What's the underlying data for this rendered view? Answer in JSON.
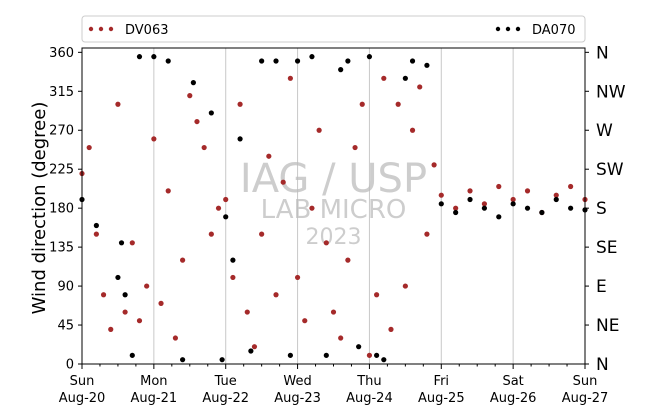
{
  "chart_data": {
    "type": "scatter",
    "ylabel": "Wind direction (degree)",
    "ylim": [
      0,
      365
    ],
    "xlim": [
      "Aug-20 00:00",
      "Aug-27 00:00"
    ],
    "yticks": [
      "0",
      "45",
      "90",
      "135",
      "180",
      "225",
      "270",
      "315",
      "360"
    ],
    "compass_ticks": [
      "N",
      "NE",
      "E",
      "SE",
      "S",
      "SW",
      "W",
      "NW",
      "N"
    ],
    "x_ticks": [
      {
        "day": "Sun",
        "date": "Aug-20"
      },
      {
        "day": "Mon",
        "date": "Aug-21"
      },
      {
        "day": "Tue",
        "date": "Aug-22"
      },
      {
        "day": "Wed",
        "date": "Aug-23"
      },
      {
        "day": "Thu",
        "date": "Aug-24"
      },
      {
        "day": "Fri",
        "date": "Aug-25"
      },
      {
        "day": "Sat",
        "date": "Aug-26"
      },
      {
        "day": "Sun",
        "date": "Aug-27"
      }
    ],
    "grid": "vertical lines at day boundaries",
    "legend_placement": "top, above plot",
    "watermark": [
      "IAG / USP",
      "LAB MICRO",
      "2023"
    ],
    "series": [
      {
        "name": "DV063",
        "color": "#a52a2a",
        "description": "widely scattered 0–360° Aug-20 to Aug-25; concentrated ~160–235° Aug-25 to Aug-27",
        "x_day": [
          0.0,
          0.1,
          0.2,
          0.3,
          0.4,
          0.5,
          0.6,
          0.7,
          0.8,
          0.9,
          1.0,
          1.1,
          1.2,
          1.3,
          1.4,
          1.5,
          1.6,
          1.7,
          1.8,
          1.9,
          2.0,
          2.1,
          2.2,
          2.3,
          2.4,
          2.5,
          2.6,
          2.7,
          2.8,
          2.9,
          3.0,
          3.1,
          3.2,
          3.3,
          3.4,
          3.5,
          3.6,
          3.7,
          3.8,
          3.9,
          4.0,
          4.1,
          4.2,
          4.3,
          4.4,
          4.5,
          4.6,
          4.7,
          4.8,
          4.9,
          5.0,
          5.2,
          5.4,
          5.6,
          5.8,
          6.0,
          6.2,
          6.4,
          6.6,
          6.8,
          7.0
        ],
        "y_deg": [
          220,
          250,
          150,
          80,
          40,
          300,
          60,
          140,
          50,
          90,
          260,
          70,
          200,
          30,
          120,
          310,
          280,
          250,
          150,
          180,
          190,
          100,
          300,
          60,
          20,
          150,
          240,
          80,
          210,
          330,
          100,
          50,
          180,
          270,
          140,
          60,
          30,
          120,
          250,
          300,
          10,
          80,
          330,
          40,
          300,
          90,
          270,
          320,
          150,
          230,
          195,
          180,
          200,
          185,
          205,
          190,
          200,
          175,
          195,
          205,
          190
        ]
      },
      {
        "name": "DA070",
        "color": "#000000",
        "description": "clusters near 320–360° on Aug-21 to Aug-24 afternoons; near 0–20° at night; ~170–200° from Aug-25",
        "x_day": [
          0.0,
          0.2,
          0.5,
          0.55,
          0.6,
          0.7,
          0.8,
          1.0,
          1.2,
          1.4,
          1.55,
          1.8,
          1.95,
          2.0,
          2.1,
          2.2,
          2.35,
          2.5,
          2.7,
          2.9,
          3.0,
          3.2,
          3.4,
          3.6,
          3.7,
          3.85,
          4.0,
          4.1,
          4.2,
          4.5,
          4.6,
          4.8,
          5.0,
          5.2,
          5.4,
          5.6,
          5.8,
          6.0,
          6.2,
          6.4,
          6.6,
          6.8,
          7.0
        ],
        "y_deg": [
          190,
          160,
          100,
          140,
          80,
          10,
          355,
          355,
          350,
          5,
          325,
          290,
          5,
          170,
          120,
          260,
          15,
          350,
          350,
          10,
          350,
          355,
          10,
          340,
          350,
          20,
          355,
          10,
          5,
          330,
          350,
          345,
          185,
          175,
          190,
          180,
          170,
          185,
          180,
          175,
          190,
          180,
          178
        ]
      }
    ]
  }
}
